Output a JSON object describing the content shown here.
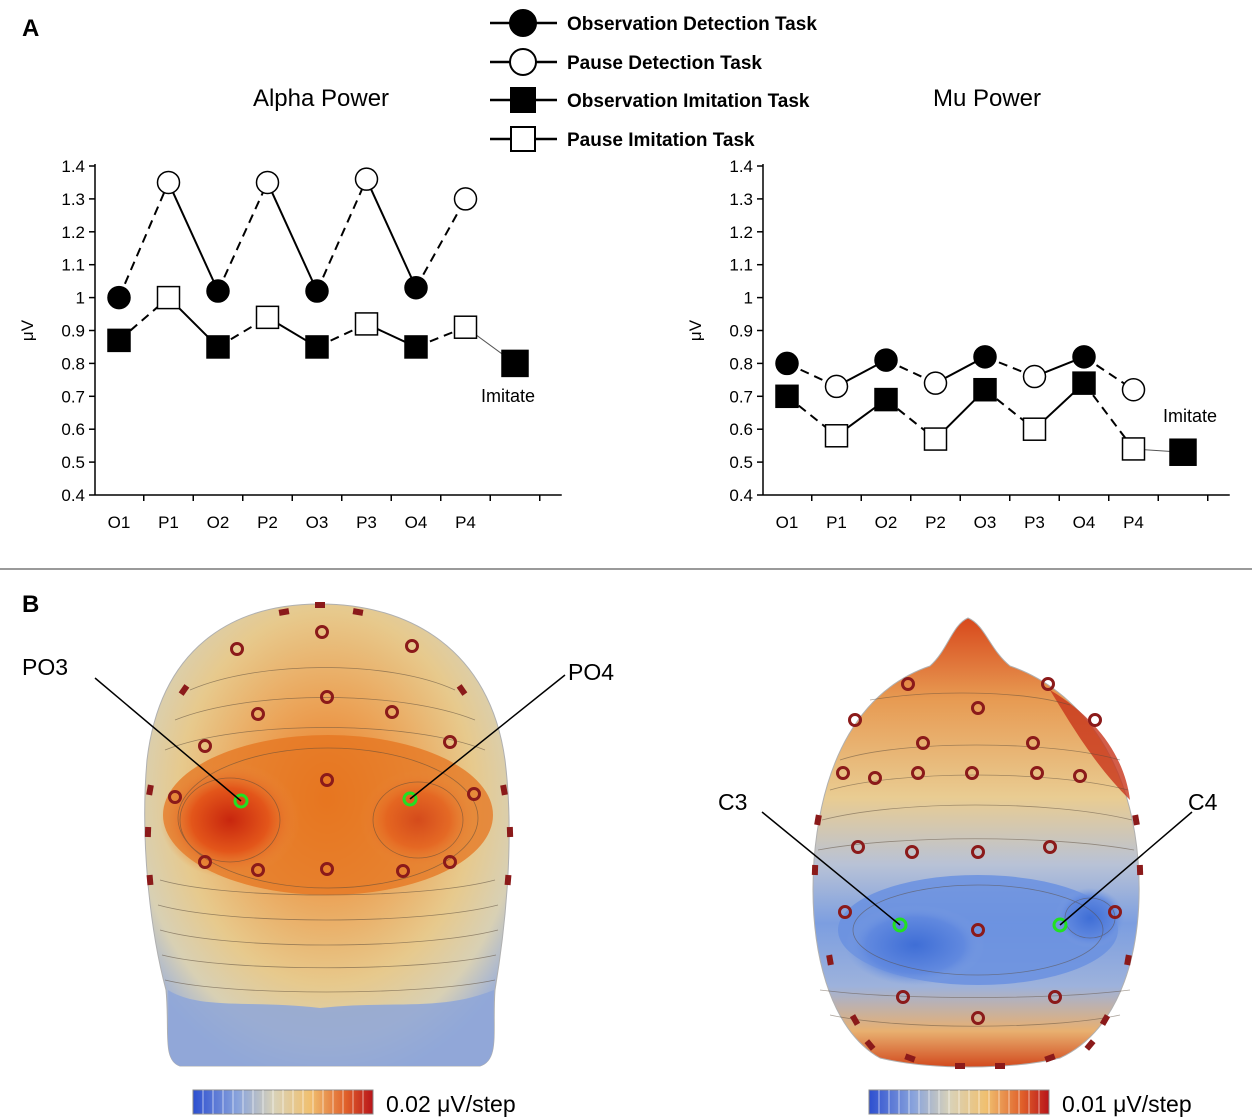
{
  "panels": {
    "a": "A",
    "b": "B"
  },
  "legend": [
    {
      "label": "Observation Detection Task",
      "marker": "circle",
      "fill": "#000000"
    },
    {
      "label": "Pause Detection Task",
      "marker": "circle",
      "fill": "#ffffff"
    },
    {
      "label": "Observation Imitation Task",
      "marker": "square",
      "fill": "#000000"
    },
    {
      "label": "Pause Imitation Task",
      "marker": "square",
      "fill": "#ffffff"
    }
  ],
  "chart_data": [
    {
      "type": "line",
      "title": "Alpha Power",
      "ylabel": "μV",
      "categories": [
        "O1",
        "P1",
        "O2",
        "P2",
        "O3",
        "P3",
        "O4",
        "P4"
      ],
      "ylim": [
        0.4,
        1.4
      ],
      "yticks": [
        "0.4",
        "0.5",
        "0.6",
        "0.7",
        "0.8",
        "0.9",
        "1",
        "1.1",
        "1.2",
        "1.3",
        "1.4"
      ],
      "detection": [
        1.0,
        1.35,
        1.02,
        1.35,
        1.02,
        1.36,
        1.03,
        1.3
      ],
      "imitation": [
        0.87,
        1.0,
        0.85,
        0.94,
        0.85,
        0.92,
        0.85,
        0.91
      ],
      "imitate_value": 0.8,
      "imitate_label": "Imitate"
    },
    {
      "type": "line",
      "title": "Mu Power",
      "ylabel": "μV",
      "categories": [
        "O1",
        "P1",
        "O2",
        "P2",
        "O3",
        "P3",
        "O4",
        "P4"
      ],
      "ylim": [
        0.4,
        1.4
      ],
      "yticks": [
        "0.4",
        "0.5",
        "0.6",
        "0.7",
        "0.8",
        "0.9",
        "1",
        "1.1",
        "1.2",
        "1.3",
        "1.4"
      ],
      "detection": [
        0.8,
        0.73,
        0.81,
        0.74,
        0.82,
        0.76,
        0.82,
        0.72
      ],
      "imitation": [
        0.7,
        0.58,
        0.69,
        0.57,
        0.72,
        0.6,
        0.74,
        0.54
      ],
      "imitate_value": 0.53,
      "imitate_label": "Imitate"
    }
  ],
  "topomaps": [
    {
      "electrodes": [
        "PO3",
        "PO4"
      ],
      "scale_label": "0.02 μV/step"
    },
    {
      "electrodes": [
        "C3",
        "C4"
      ],
      "scale_label": "0.01 μV/step"
    }
  ],
  "colors": {
    "electrode": "#8b1a1a",
    "highlight": "#22e022",
    "warm": "#e05a10",
    "cool": "#4f7ed8",
    "neutral": "#d8c8a0"
  }
}
